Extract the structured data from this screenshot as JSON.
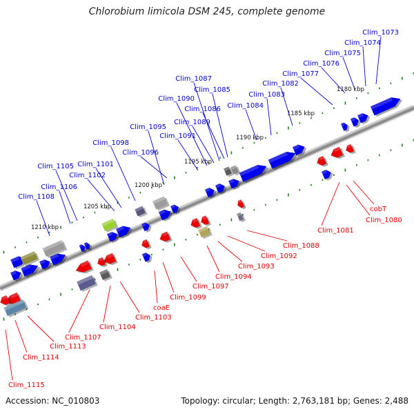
{
  "title": "Chlorobium limicola DSM 245, complete genome",
  "accession_text": "Accession: NC_010803",
  "summary_text": "Topology: circular; Length: 2,763,181 bp; Genes: 2,488",
  "colors": {
    "forward_gene": "#0000ee",
    "reverse_gene": "#ee0000",
    "forward_label": "#0000cc",
    "reverse_label": "#dd0000",
    "backbone": "#8a8a8a",
    "tick": "#1a7a1a"
  },
  "scale_labels": [
    "1180 kbp",
    "1185 kbp",
    "1190 kbp",
    "1195 kbp",
    "1200 kbp",
    "1205 kbp",
    "1210 kbp"
  ],
  "forward_labels": [
    "Clim_1073",
    "Clim_1074",
    "Clim_1075",
    "Clim_1076",
    "Clim_1077",
    "Clim_1082",
    "Clim_1083",
    "Clim_1084",
    "Clim_1085",
    "Clim_1086",
    "Clim_1087",
    "Clim_1089",
    "Clim_1090",
    "Clim_1091",
    "Clim_1095",
    "Clim_1096",
    "Clim_1098",
    "Clim_1101",
    "Clim_1102",
    "Clim_1105",
    "Clim_1106",
    "Clim_1108"
  ],
  "reverse_labels": [
    "cobT",
    "Clim_1080",
    "Clim_1081",
    "Clim_1088",
    "Clim_1092",
    "Clim_1093",
    "Clim_1094",
    "Clim_1097",
    "Clim_1099",
    "coaE",
    "Clim_1103",
    "Clim_1104",
    "Clim_1107",
    "Clim_1113",
    "Clim_1114",
    "Clim_1115"
  ]
}
